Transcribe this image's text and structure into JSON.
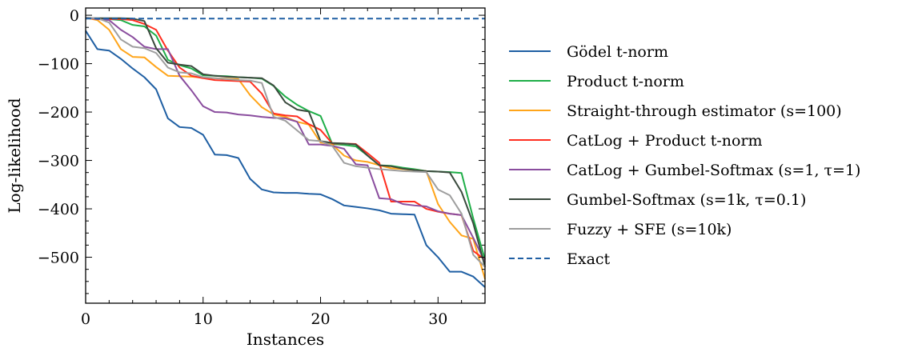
{
  "chart_data": {
    "type": "line",
    "title": "",
    "xlabel": "Instances",
    "ylabel": "Log-likelihood",
    "xlim": [
      0,
      34
    ],
    "ylim": [
      -595,
      15
    ],
    "xticks": [
      0,
      10,
      20,
      30
    ],
    "yticks": [
      0,
      -100,
      -200,
      -300,
      -400,
      -500
    ],
    "xtick_labels": [
      "0",
      "10",
      "20",
      "30"
    ],
    "ytick_labels": [
      "0",
      "−100",
      "−200",
      "−300",
      "−400",
      "−500"
    ],
    "grid": false,
    "legend_position": "right",
    "x": [
      0,
      1,
      2,
      3,
      4,
      5,
      6,
      7,
      8,
      9,
      10,
      11,
      12,
      13,
      14,
      15,
      16,
      17,
      18,
      19,
      20,
      21,
      22,
      23,
      24,
      25,
      26,
      27,
      28,
      29,
      30,
      31,
      32,
      33,
      34
    ],
    "series": [
      {
        "name": "Gödel t-norm",
        "color": "#1f5fa3",
        "dash": "solid",
        "values": [
          -32,
          -70,
          -73,
          -90,
          -110,
          -128,
          -153,
          -213,
          -231,
          -233,
          -247,
          -288,
          -289,
          -295,
          -338,
          -360,
          -366,
          -367,
          -367,
          -369,
          -370,
          -380,
          -393,
          -396,
          -399,
          -403,
          -410,
          -411,
          -412,
          -475,
          -500,
          -530,
          -530,
          -540,
          -562
        ]
      },
      {
        "name": "Product t-norm",
        "color": "#1fae48",
        "dash": "solid",
        "values": [
          -5,
          -7,
          -8,
          -10,
          -20,
          -23,
          -42,
          -92,
          -103,
          -110,
          -124,
          -125,
          -126,
          -128,
          -129,
          -131,
          -146,
          -168,
          -185,
          -198,
          -208,
          -266,
          -268,
          -271,
          -290,
          -310,
          -311,
          -315,
          -318,
          -322,
          -323,
          -324,
          -326,
          -420,
          -505
        ]
      },
      {
        "name": "Straight-through estimator (s=100)",
        "color": "#ffa51a",
        "dash": "solid",
        "values": [
          -5,
          -10,
          -30,
          -70,
          -86,
          -87,
          -107,
          -125,
          -126,
          -127,
          -129,
          -130,
          -131,
          -132,
          -165,
          -190,
          -205,
          -210,
          -220,
          -226,
          -263,
          -267,
          -290,
          -300,
          -303,
          -310,
          -316,
          -318,
          -320,
          -322,
          -390,
          -427,
          -455,
          -462,
          -545
        ]
      },
      {
        "name": "CatLog + Product t-norm",
        "color": "#ff2e1f",
        "dash": "solid",
        "values": [
          -5,
          -8,
          -8,
          -8,
          -10,
          -18,
          -30,
          -73,
          -108,
          -125,
          -130,
          -134,
          -135,
          -136,
          -137,
          -162,
          -203,
          -207,
          -209,
          -225,
          -237,
          -265,
          -265,
          -266,
          -285,
          -305,
          -385,
          -385,
          -385,
          -400,
          -406,
          -410,
          -413,
          -487,
          -505
        ]
      },
      {
        "name": "CatLog + Gumbel-Softmax (s=1, τ=1)",
        "color": "#8a4d9e",
        "dash": "solid",
        "values": [
          -5,
          -8,
          -10,
          -30,
          -45,
          -65,
          -70,
          -70,
          -125,
          -155,
          -188,
          -200,
          -201,
          -205,
          -207,
          -210,
          -212,
          -213,
          -220,
          -267,
          -267,
          -270,
          -276,
          -308,
          -310,
          -378,
          -380,
          -390,
          -393,
          -395,
          -405,
          -410,
          -413,
          -460,
          -510
        ]
      },
      {
        "name": "Gumbel-Softmax (s=1k, τ=0.1)",
        "color": "#3a4a3d",
        "dash": "solid",
        "values": [
          -5,
          -6,
          -6,
          -6,
          -7,
          -12,
          -68,
          -98,
          -102,
          -105,
          -122,
          -125,
          -127,
          -128,
          -129,
          -130,
          -145,
          -180,
          -195,
          -199,
          -260,
          -264,
          -265,
          -267,
          -290,
          -310,
          -312,
          -317,
          -320,
          -322,
          -323,
          -325,
          -365,
          -430,
          -520
        ]
      },
      {
        "name": "Fuzzy + SFE (s=10k)",
        "color": "#9e9e9e",
        "dash": "solid",
        "values": [
          -5,
          -6,
          -15,
          -50,
          -65,
          -68,
          -78,
          -108,
          -118,
          -120,
          -128,
          -130,
          -132,
          -134,
          -135,
          -140,
          -210,
          -218,
          -238,
          -258,
          -260,
          -270,
          -305,
          -312,
          -315,
          -318,
          -320,
          -322,
          -323,
          -324,
          -360,
          -372,
          -410,
          -495,
          -520
        ]
      },
      {
        "name": "Exact",
        "color": "#1f5fa3",
        "dash": "dashed",
        "values": [
          -7,
          -7,
          -7,
          -7,
          -7,
          -7,
          -7,
          -7,
          -7,
          -7,
          -7,
          -7,
          -7,
          -7,
          -7,
          -7,
          -7,
          -7,
          -7,
          -7,
          -7,
          -7,
          -7,
          -7,
          -7,
          -7,
          -7,
          -7,
          -7,
          -7,
          -7,
          -7,
          -7,
          -7,
          -7
        ]
      }
    ]
  }
}
